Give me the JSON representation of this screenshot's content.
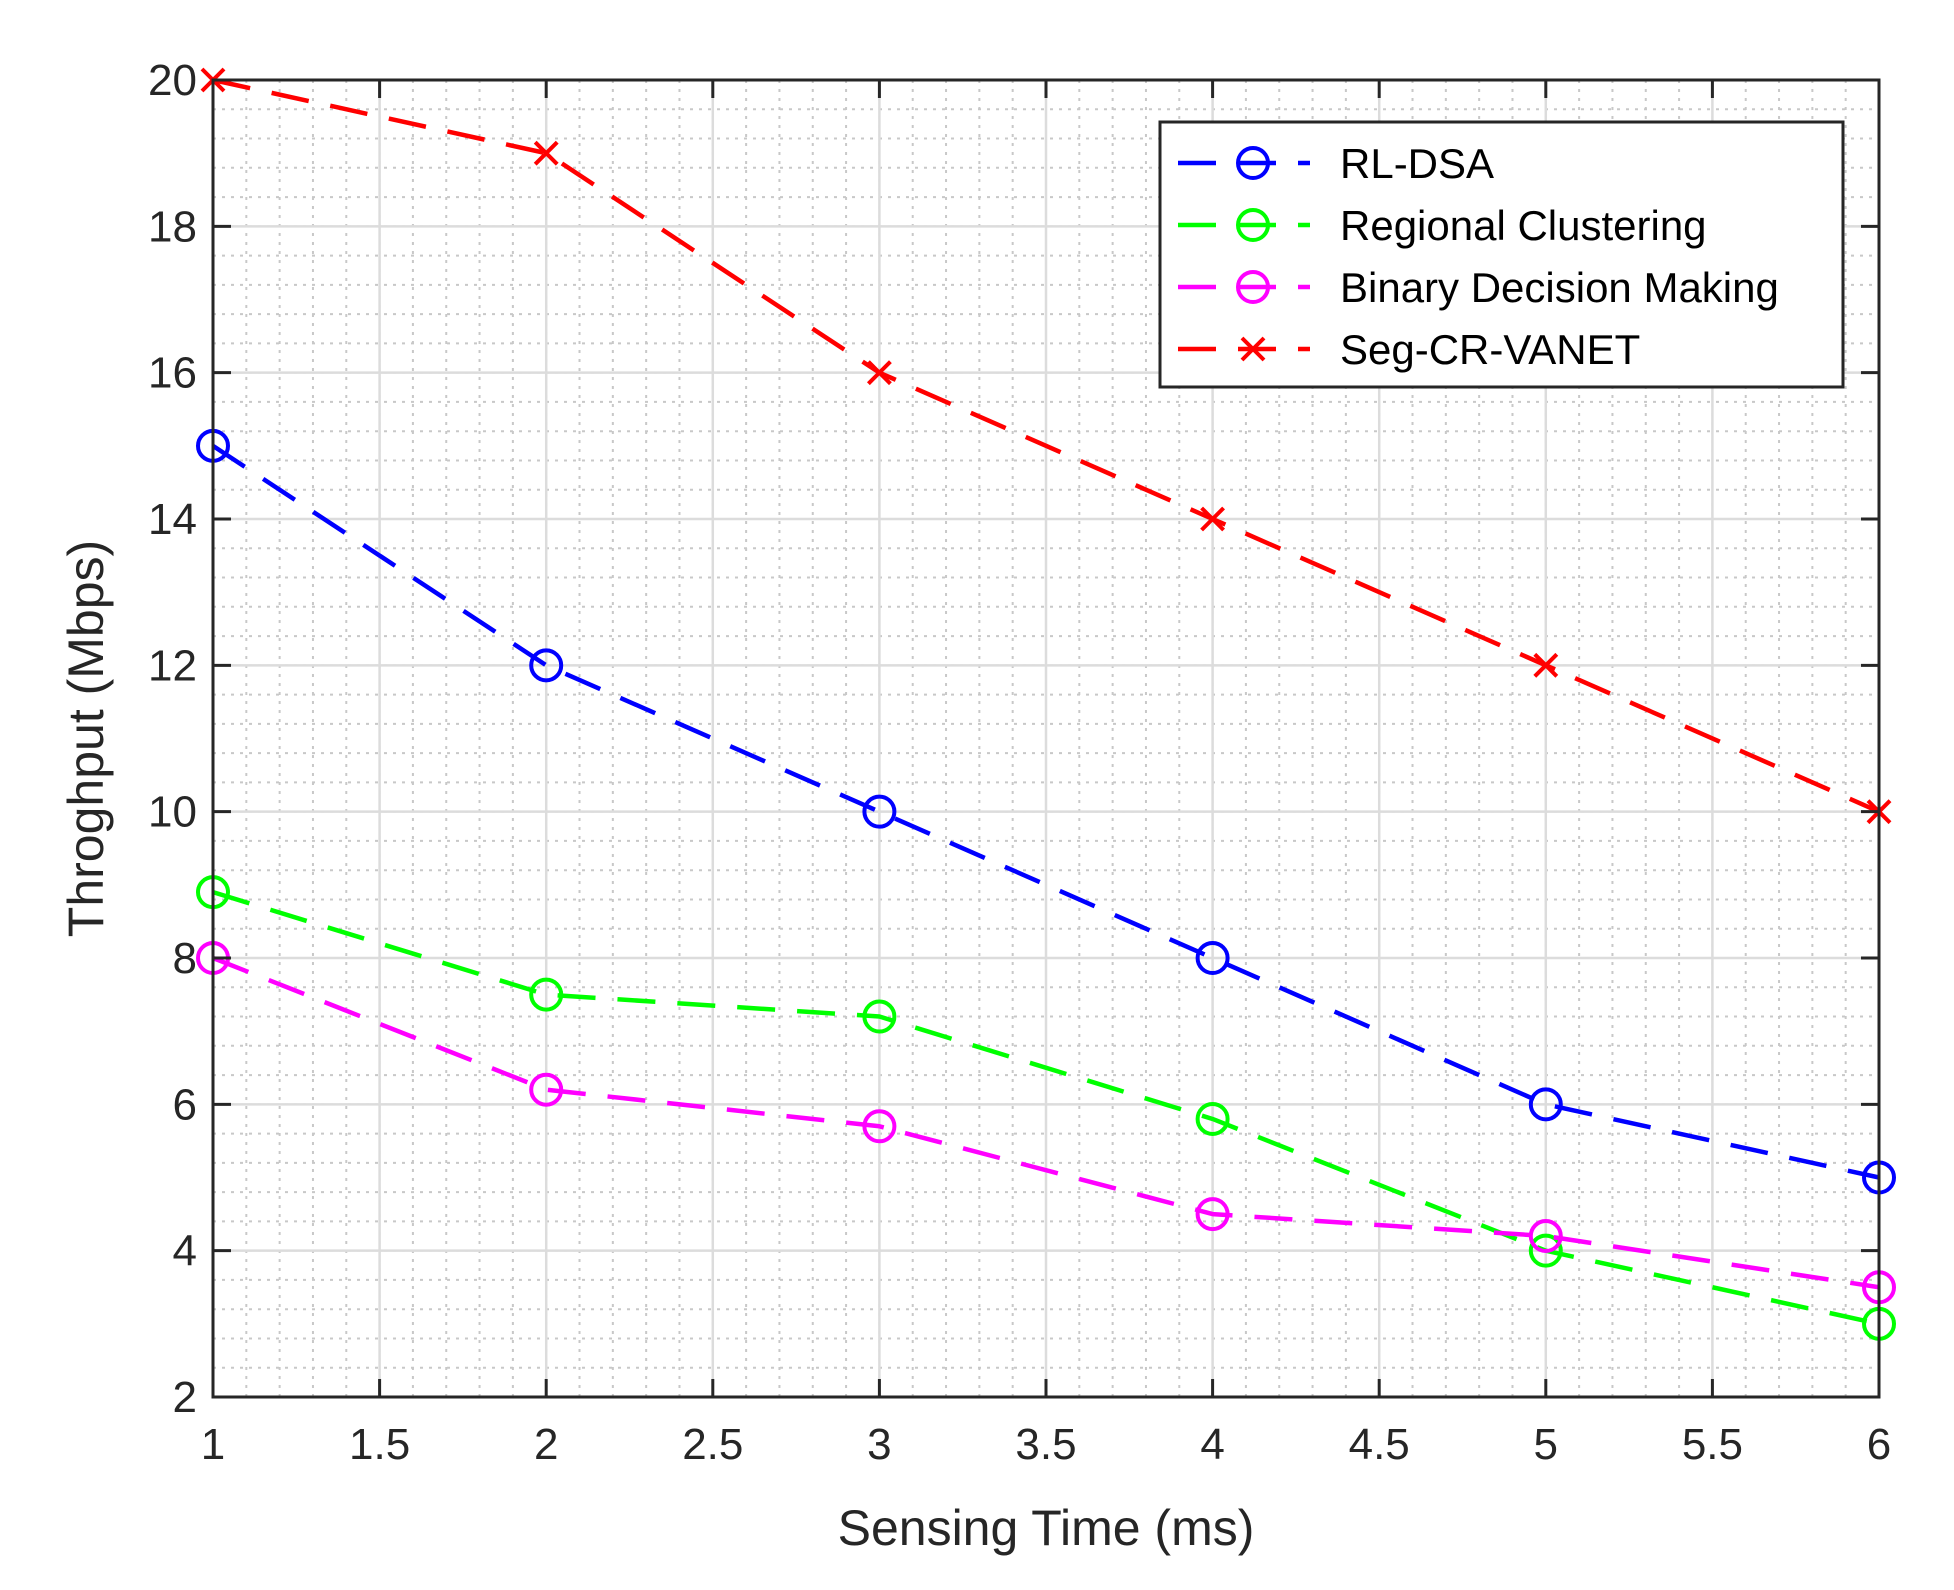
{
  "chart_data": {
    "type": "line",
    "title": "",
    "xlabel": "Sensing Time (ms)",
    "ylabel": "Throghput (Mbps)",
    "xlim": [
      1,
      6
    ],
    "ylim": [
      2,
      20
    ],
    "xticks": [
      1,
      1.5,
      2,
      2.5,
      3,
      3.5,
      4,
      4.5,
      5,
      5.5,
      6
    ],
    "yticks": [
      2,
      4,
      6,
      8,
      10,
      12,
      14,
      16,
      18,
      20
    ],
    "grid": true,
    "minor_grid": true,
    "legend_position": "top-right",
    "x": [
      1,
      2,
      3,
      4,
      5,
      6
    ],
    "series": [
      {
        "name": "RL-DSA",
        "color": "#0000ff",
        "marker": "circle",
        "values": [
          15,
          12,
          10,
          8,
          6,
          5
        ]
      },
      {
        "name": "Regional Clustering",
        "color": "#00ff00",
        "marker": "circle",
        "values": [
          8.9,
          7.5,
          7.2,
          5.8,
          4.0,
          3.0
        ]
      },
      {
        "name": "Binary Decision Making",
        "color": "#ff00ff",
        "marker": "circle",
        "values": [
          8.0,
          6.2,
          5.7,
          4.5,
          4.2,
          3.5
        ]
      },
      {
        "name": "Seg-CR-VANET",
        "color": "#ff0000",
        "marker": "x",
        "values": [
          20,
          19,
          16,
          14,
          12,
          10
        ]
      }
    ]
  }
}
